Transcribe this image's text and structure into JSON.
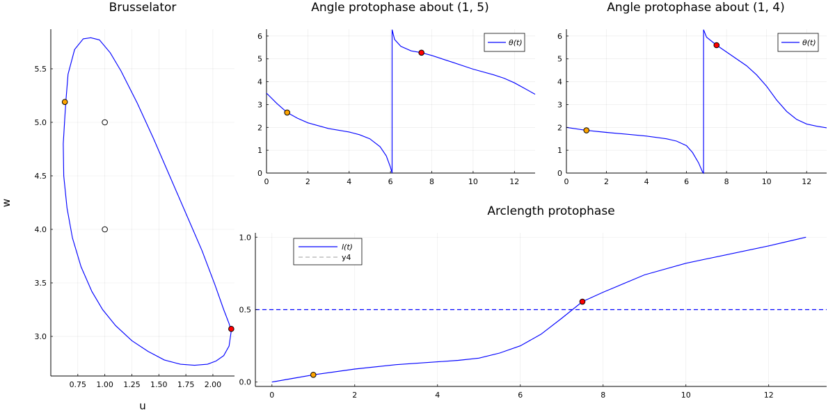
{
  "chart_data": [
    {
      "type": "line",
      "title": "Brusselator",
      "xlabel": "u",
      "ylabel": "w",
      "xlim": [
        0.5,
        2.2
      ],
      "ylim": [
        2.63,
        5.87
      ],
      "xticks": [
        0.75,
        1.0,
        1.25,
        1.5,
        1.75,
        2.0
      ],
      "xtick_labels": [
        "0.75",
        "1.00",
        "1.25",
        "1.50",
        "1.75",
        "2.00"
      ],
      "yticks": [
        3.0,
        3.5,
        4.0,
        4.5,
        5.0,
        5.5
      ],
      "ytick_labels": [
        "3.0",
        "3.5",
        "4.0",
        "4.5",
        "5.0",
        "5.5"
      ],
      "grid": true,
      "legend": "none",
      "colors": {
        "curve": "#0000ff",
        "marker_t1": "#ffa500",
        "marker_t2": "#ff0000",
        "open_marker": "#ffffff"
      },
      "series": [
        {
          "x": [
            0.64,
            0.66,
            0.72,
            0.8,
            0.87,
            0.95,
            1.05,
            1.15,
            1.3,
            1.45,
            1.6,
            1.75,
            1.9,
            2.02,
            2.1,
            2.15,
            2.17,
            2.15,
            2.1,
            2.03,
            1.95,
            1.83,
            1.7,
            1.55,
            1.4,
            1.25,
            1.1,
            0.98,
            0.88,
            0.78,
            0.7,
            0.65,
            0.62,
            0.615,
            0.63,
            0.64
          ],
          "y": [
            5.2,
            5.45,
            5.68,
            5.78,
            5.79,
            5.77,
            5.65,
            5.48,
            5.18,
            4.85,
            4.5,
            4.15,
            3.8,
            3.48,
            3.25,
            3.12,
            3.05,
            2.91,
            2.82,
            2.77,
            2.74,
            2.73,
            2.74,
            2.78,
            2.86,
            2.96,
            3.1,
            3.25,
            3.42,
            3.65,
            3.92,
            4.2,
            4.5,
            4.8,
            5.05,
            5.2
          ]
        }
      ],
      "points": [
        {
          "u": 0.63,
          "w": 5.19,
          "fill": "#ffa500"
        },
        {
          "u": 2.17,
          "w": 3.07,
          "fill": "#ff0000"
        },
        {
          "u": 1.0,
          "w": 5.0,
          "fill": "#ffffff"
        },
        {
          "u": 1.0,
          "w": 4.0,
          "fill": "#ffffff"
        }
      ]
    },
    {
      "type": "line",
      "title": "Angle protophase about (1, 5)",
      "xlim": [
        0,
        13
      ],
      "ylim": [
        0,
        6.3
      ],
      "xticks": [
        0,
        2,
        4,
        6,
        8,
        10,
        12
      ],
      "xtick_labels": [
        "0",
        "2",
        "4",
        "6",
        "8",
        "10",
        "12"
      ],
      "yticks": [
        0,
        1,
        2,
        3,
        4,
        5,
        6
      ],
      "ytick_labels": [
        "0",
        "1",
        "2",
        "3",
        "4",
        "5",
        "6"
      ],
      "grid": true,
      "legend": "top-right",
      "series": [
        {
          "name": "θ(t)",
          "x": [
            0,
            0.5,
            1.0,
            1.5,
            2,
            3,
            4,
            4.5,
            5.0,
            5.5,
            5.8,
            6.0,
            6.08,
            6.08,
            6.2,
            6.5,
            7.0,
            7.5,
            8,
            9,
            10,
            11,
            11.5,
            12,
            12.5,
            13
          ],
          "y": [
            3.5,
            3.05,
            2.65,
            2.4,
            2.2,
            1.95,
            1.8,
            1.68,
            1.5,
            1.15,
            0.75,
            0.25,
            0.0,
            6.28,
            5.85,
            5.55,
            5.35,
            5.27,
            5.15,
            4.85,
            4.55,
            4.3,
            4.15,
            3.95,
            3.7,
            3.45
          ]
        }
      ],
      "points": [
        {
          "t": 1.0,
          "theta": 2.65,
          "fill": "#ffa500"
        },
        {
          "t": 7.5,
          "theta": 5.27,
          "fill": "#ff0000"
        }
      ]
    },
    {
      "type": "line",
      "title": "Angle protophase about (1, 4)",
      "xlim": [
        0,
        13
      ],
      "ylim": [
        0,
        6.3
      ],
      "xticks": [
        0,
        2,
        4,
        6,
        8,
        10,
        12
      ],
      "xtick_labels": [
        "0",
        "2",
        "4",
        "6",
        "8",
        "10",
        "12"
      ],
      "yticks": [
        0,
        1,
        2,
        3,
        4,
        5,
        6
      ],
      "ytick_labels": [
        "0",
        "1",
        "2",
        "3",
        "4",
        "5",
        "6"
      ],
      "grid": true,
      "legend": "top-right",
      "series": [
        {
          "name": "θ(t)",
          "x": [
            0,
            1,
            2,
            3,
            4,
            5,
            5.5,
            6,
            6.3,
            6.6,
            6.8,
            6.85,
            6.85,
            7.0,
            7.5,
            8,
            9,
            9.5,
            10,
            10.5,
            11,
            11.5,
            12,
            12.5,
            13
          ],
          "y": [
            2.0,
            1.87,
            1.78,
            1.7,
            1.62,
            1.5,
            1.4,
            1.2,
            0.9,
            0.45,
            0.05,
            0.0,
            6.28,
            5.95,
            5.6,
            5.3,
            4.7,
            4.3,
            3.8,
            3.2,
            2.7,
            2.35,
            2.15,
            2.05,
            1.98
          ]
        }
      ],
      "points": [
        {
          "t": 1.0,
          "theta": 1.87,
          "fill": "#ffa500"
        },
        {
          "t": 7.5,
          "theta": 5.6,
          "fill": "#ff0000"
        }
      ]
    },
    {
      "type": "line",
      "title": "Arclength protophase",
      "xlim": [
        -0.4,
        13.4
      ],
      "ylim": [
        -0.03,
        1.03
      ],
      "xticks": [
        0,
        2,
        4,
        6,
        8,
        10,
        12
      ],
      "xtick_labels": [
        "0",
        "2",
        "4",
        "6",
        "8",
        "10",
        "12"
      ],
      "yticks": [
        0.0,
        0.5,
        1.0
      ],
      "ytick_labels": [
        "0.0",
        "0.5",
        "1.0"
      ],
      "grid": true,
      "legend": "top-left",
      "series": [
        {
          "name": "l(t)",
          "x": [
            0,
            0.5,
            1,
            2,
            3,
            4,
            4.5,
            5,
            5.5,
            6,
            6.5,
            7,
            7.5,
            8,
            9,
            10,
            11,
            12,
            12.9
          ],
          "y": [
            0.0,
            0.025,
            0.05,
            0.09,
            0.12,
            0.14,
            0.15,
            0.165,
            0.2,
            0.25,
            0.33,
            0.44,
            0.555,
            0.62,
            0.74,
            0.82,
            0.88,
            0.94,
            1.0
          ]
        },
        {
          "name": "y4",
          "x": [
            -0.4,
            13.4
          ],
          "y": [
            0.5,
            0.5
          ]
        }
      ],
      "points": [
        {
          "t": 1.0,
          "l": 0.05,
          "fill": "#ffa500"
        },
        {
          "t": 7.5,
          "l": 0.555,
          "fill": "#ff0000"
        }
      ]
    }
  ],
  "legend_style": {
    "line_color": "#0000ff",
    "dash_color": "#b0b0b0"
  }
}
